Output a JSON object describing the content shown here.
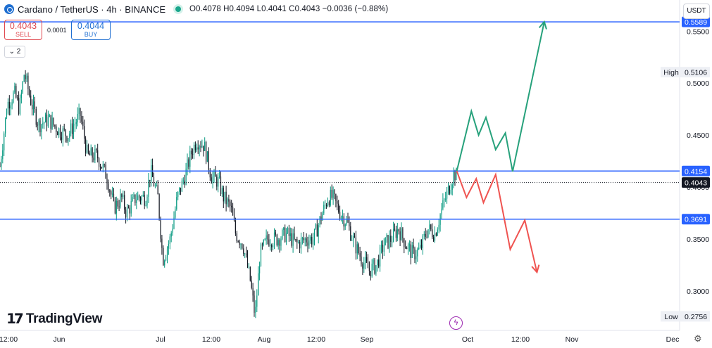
{
  "header": {
    "symbol": "Cardano / TetherUS · 4h · BINANCE",
    "ohlc": "O0.4078 H0.4094 L0.4041 C0.4043 −0.0036 (−0.88%)"
  },
  "trade": {
    "sell_price": "0.4043",
    "sell_label": "SELL",
    "spread": "0.0001",
    "buy_price": "0.4044",
    "buy_label": "BUY"
  },
  "toolbar": {
    "collapse_label": "2",
    "currency_label": "USDT"
  },
  "branding": {
    "name": "TradingView"
  },
  "colors": {
    "up": "#089981",
    "down": "#131722",
    "level": "#2962ff",
    "green_path": "#26a17b",
    "red_path": "#ef5350",
    "price_tag": "#131722"
  },
  "chart_data": {
    "type": "candlestick",
    "symbol": "ADAUSDT",
    "interval": "4h",
    "ylim": [
      0.262,
      0.58
    ],
    "y_ticks": [
      "0.5500",
      "0.5000",
      "0.4500",
      "0.4000",
      "0.3500",
      "0.3000"
    ],
    "y_tick_values": [
      0.55,
      0.5,
      0.45,
      0.4,
      0.35,
      0.3
    ],
    "x_ticks": [
      "12:00",
      "Jun",
      "Jul",
      "12:00",
      "Aug",
      "12:00",
      "Sep",
      "Oct",
      "12:00",
      "Nov",
      "Dec"
    ],
    "price_path": [
      [
        0,
        0.42
      ],
      [
        0.03,
        0.48
      ],
      [
        0.06,
        0.49
      ],
      [
        0.08,
        0.475
      ],
      [
        0.1,
        0.51
      ],
      [
        0.13,
        0.48
      ],
      [
        0.16,
        0.46
      ],
      [
        0.2,
        0.465
      ],
      [
        0.24,
        0.455
      ],
      [
        0.28,
        0.45
      ],
      [
        0.33,
        0.47
      ],
      [
        0.36,
        0.43
      ],
      [
        0.4,
        0.43
      ],
      [
        0.44,
        0.41
      ],
      [
        0.47,
        0.38
      ],
      [
        0.5,
        0.39
      ],
      [
        0.52,
        0.375
      ],
      [
        0.56,
        0.39
      ],
      [
        0.6,
        0.39
      ],
      [
        0.62,
        0.415
      ],
      [
        0.65,
        0.39
      ],
      [
        0.67,
        0.33
      ],
      [
        0.7,
        0.35
      ],
      [
        0.73,
        0.39
      ],
      [
        0.76,
        0.41
      ],
      [
        0.79,
        0.435
      ],
      [
        0.81,
        0.445
      ],
      [
        0.84,
        0.44
      ],
      [
        0.87,
        0.41
      ],
      [
        0.9,
        0.405
      ],
      [
        0.92,
        0.39
      ],
      [
        0.95,
        0.38
      ],
      [
        0.97,
        0.355
      ],
      [
        1.0,
        0.345
      ],
      [
        1.03,
        0.31
      ],
      [
        1.05,
        0.275
      ],
      [
        1.07,
        0.335
      ],
      [
        1.1,
        0.35
      ],
      [
        1.14,
        0.35
      ],
      [
        1.18,
        0.355
      ],
      [
        1.22,
        0.345
      ],
      [
        1.26,
        0.35
      ],
      [
        1.29,
        0.35
      ],
      [
        1.32,
        0.37
      ],
      [
        1.35,
        0.39
      ],
      [
        1.37,
        0.39
      ],
      [
        1.4,
        0.375
      ],
      [
        1.43,
        0.365
      ],
      [
        1.46,
        0.345
      ],
      [
        1.49,
        0.33
      ],
      [
        1.52,
        0.32
      ],
      [
        1.55,
        0.325
      ],
      [
        1.58,
        0.345
      ],
      [
        1.61,
        0.35
      ],
      [
        1.64,
        0.36
      ],
      [
        1.67,
        0.345
      ],
      [
        1.7,
        0.335
      ],
      [
        1.73,
        0.34
      ],
      [
        1.76,
        0.36
      ],
      [
        1.79,
        0.355
      ],
      [
        1.82,
        0.38
      ],
      [
        1.85,
        0.4
      ],
      [
        1.87,
        0.415
      ],
      [
        1.88,
        0.405
      ]
    ],
    "levels": [
      {
        "value": 0.5589,
        "label": "0.5589"
      },
      {
        "value": 0.4154,
        "label": "0.4154"
      },
      {
        "value": 0.3691,
        "label": "0.3691"
      }
    ],
    "last_price": {
      "value": 0.4043,
      "label": "0.4043"
    },
    "high": {
      "label": "High",
      "value_label": "0.5106",
      "value": 0.5106
    },
    "low": {
      "label": "Low",
      "value_label": "0.2756",
      "value": 0.2756
    },
    "projection_bullish": [
      [
        1.88,
        0.4154
      ],
      [
        1.94,
        0.473
      ],
      [
        1.97,
        0.45
      ],
      [
        2.0,
        0.467
      ],
      [
        2.04,
        0.436
      ],
      [
        2.08,
        0.452
      ],
      [
        2.11,
        0.415
      ],
      [
        2.24,
        0.559
      ]
    ],
    "projection_bearish": [
      [
        1.88,
        0.4154
      ],
      [
        1.92,
        0.39
      ],
      [
        1.96,
        0.408
      ],
      [
        1.99,
        0.385
      ],
      [
        2.04,
        0.412
      ],
      [
        2.1,
        0.34
      ],
      [
        2.16,
        0.368
      ],
      [
        2.21,
        0.318
      ]
    ]
  }
}
